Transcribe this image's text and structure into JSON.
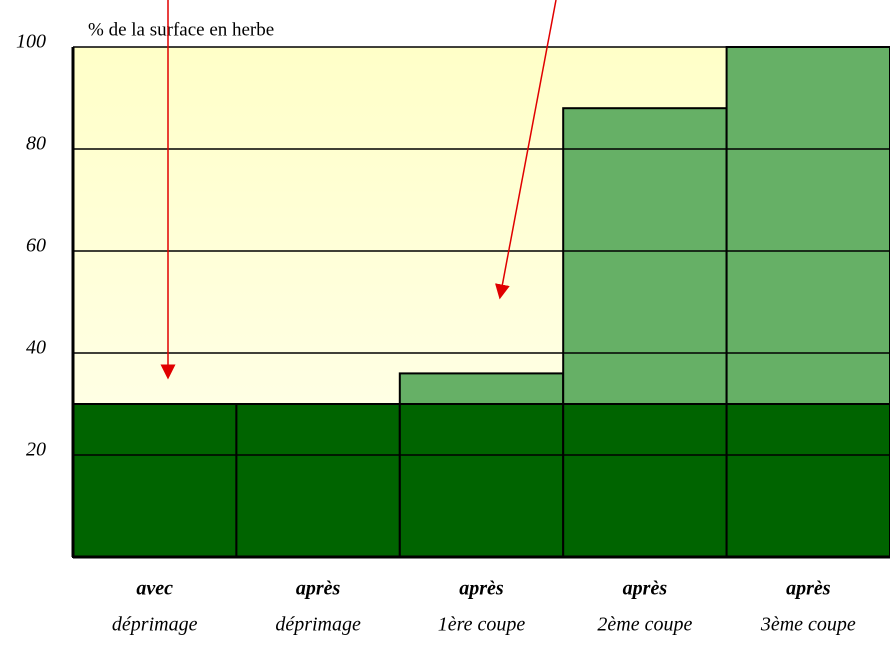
{
  "chart_data": {
    "type": "stacked_bar",
    "title": "% de la surface en herbe",
    "categories": [
      [
        "avec",
        "déprimage"
      ],
      [
        "après",
        "déprimage"
      ],
      [
        "après",
        "1ère coupe"
      ],
      [
        "après",
        "2ème coupe"
      ],
      [
        "après",
        "3ème coupe"
      ]
    ],
    "series": [
      {
        "color": "#006400",
        "values": [
          30,
          30,
          30,
          30,
          30
        ]
      },
      {
        "color": "#66b066",
        "values": [
          0,
          0,
          6,
          58,
          70
        ]
      }
    ],
    "ylim": [
      0,
      100
    ],
    "yticks": [
      20,
      40,
      60,
      80,
      100
    ],
    "grid": true
  }
}
